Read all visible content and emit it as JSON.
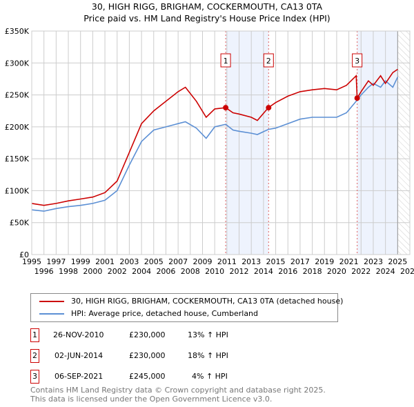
{
  "title": "30, HIGH RIGG, BRIGHAM, COCKERMOUTH, CA13 0TA",
  "subtitle": "Price paid vs. HM Land Registry's House Price Index (HPI)",
  "chart_data": {
    "type": "line",
    "xlim": [
      1995,
      2026
    ],
    "ylim": [
      0,
      350000
    ],
    "x_ticks": [
      "1995",
      "1996",
      "1997",
      "1998",
      "1999",
      "2000",
      "2001",
      "2002",
      "2003",
      "2004",
      "2005",
      "2006",
      "2007",
      "2008",
      "2009",
      "2010",
      "2011",
      "2012",
      "2013",
      "2014",
      "2015",
      "2016",
      "2017",
      "2018",
      "2019",
      "2020",
      "2021",
      "2022",
      "2023",
      "2024",
      "2025",
      "2026"
    ],
    "y_ticks": [
      {
        "v": 0,
        "label": "£0"
      },
      {
        "v": 50000,
        "label": "£50K"
      },
      {
        "v": 100000,
        "label": "£100K"
      },
      {
        "v": 150000,
        "label": "£150K"
      },
      {
        "v": 200000,
        "label": "£200K"
      },
      {
        "v": 250000,
        "label": "£250K"
      },
      {
        "v": 300000,
        "label": "£300K"
      },
      {
        "v": 350000,
        "label": "£350K"
      }
    ],
    "series": [
      {
        "name": "30, HIGH RIGG, BRIGHAM, COCKERMOUTH, CA13 0TA (detached house)",
        "color": "#cc0000",
        "x": [
          1995,
          1996,
          1997,
          1998,
          1999,
          2000,
          2001,
          2002,
          2003,
          2004,
          2005,
          2006,
          2007,
          2007.6,
          2008.5,
          2009.3,
          2010,
          2010.9,
          2011.5,
          2012,
          2013,
          2013.5,
          2014.4,
          2015,
          2016,
          2017,
          2018,
          2019,
          2020,
          2020.8,
          2021.6,
          2021.68,
          2022,
          2022.6,
          2023,
          2023.6,
          2024,
          2024.6,
          2025
        ],
        "y": [
          80000,
          77000,
          80000,
          84000,
          87000,
          90000,
          97000,
          115000,
          160000,
          205000,
          225000,
          240000,
          255000,
          262000,
          240000,
          215000,
          228000,
          230000,
          222000,
          220000,
          215000,
          210000,
          230000,
          238000,
          248000,
          255000,
          258000,
          260000,
          258000,
          265000,
          280000,
          245000,
          255000,
          272000,
          265000,
          280000,
          268000,
          285000,
          290000
        ]
      },
      {
        "name": "HPI: Average price, detached house, Cumberland",
        "color": "#5b8fd4",
        "x": [
          1995,
          1996,
          1997,
          1998,
          1999,
          2000,
          2001,
          2002,
          2003,
          2004,
          2005,
          2006,
          2007,
          2007.6,
          2008.5,
          2009.3,
          2010,
          2010.9,
          2011.5,
          2012,
          2013,
          2013.5,
          2014.4,
          2015,
          2016,
          2017,
          2018,
          2019,
          2020,
          2020.8,
          2021.6,
          2022,
          2022.6,
          2023,
          2023.6,
          2024,
          2024.6,
          2025
        ],
        "y": [
          70000,
          68000,
          72000,
          75000,
          77000,
          80000,
          85000,
          100000,
          140000,
          177000,
          195000,
          200000,
          205000,
          208000,
          198000,
          182000,
          200000,
          204000,
          195000,
          193000,
          190000,
          188000,
          196000,
          198000,
          205000,
          212000,
          215000,
          215000,
          215000,
          222000,
          240000,
          250000,
          262000,
          268000,
          262000,
          272000,
          262000,
          278000
        ]
      }
    ],
    "sales": [
      {
        "n": "1",
        "x": 2010.9,
        "y": 230000
      },
      {
        "n": "2",
        "x": 2014.42,
        "y": 230000
      },
      {
        "n": "3",
        "x": 2021.68,
        "y": 245000
      }
    ],
    "shaded": [
      [
        2010.9,
        2014.42
      ],
      [
        2021.68,
        2025.0
      ]
    ],
    "hatch_from": 2025.0,
    "grid": true
  },
  "legend": {
    "property": "30, HIGH RIGG, BRIGHAM, COCKERMOUTH, CA13 0TA (detached house)",
    "hpi": "HPI: Average price, detached house, Cumberland"
  },
  "transactions": [
    {
      "n": "1",
      "date": "26-NOV-2010",
      "price": "£230,000",
      "hpi": "13% ↑ HPI"
    },
    {
      "n": "2",
      "date": "02-JUN-2014",
      "price": "£230,000",
      "hpi": "18% ↑ HPI"
    },
    {
      "n": "3",
      "date": "06-SEP-2021",
      "price": "£245,000",
      "hpi": "4% ↑ HPI"
    }
  ],
  "footer": {
    "line1": "Contains HM Land Registry data © Crown copyright and database right 2025.",
    "line2": "This data is licensed under the Open Government Licence v3.0."
  }
}
